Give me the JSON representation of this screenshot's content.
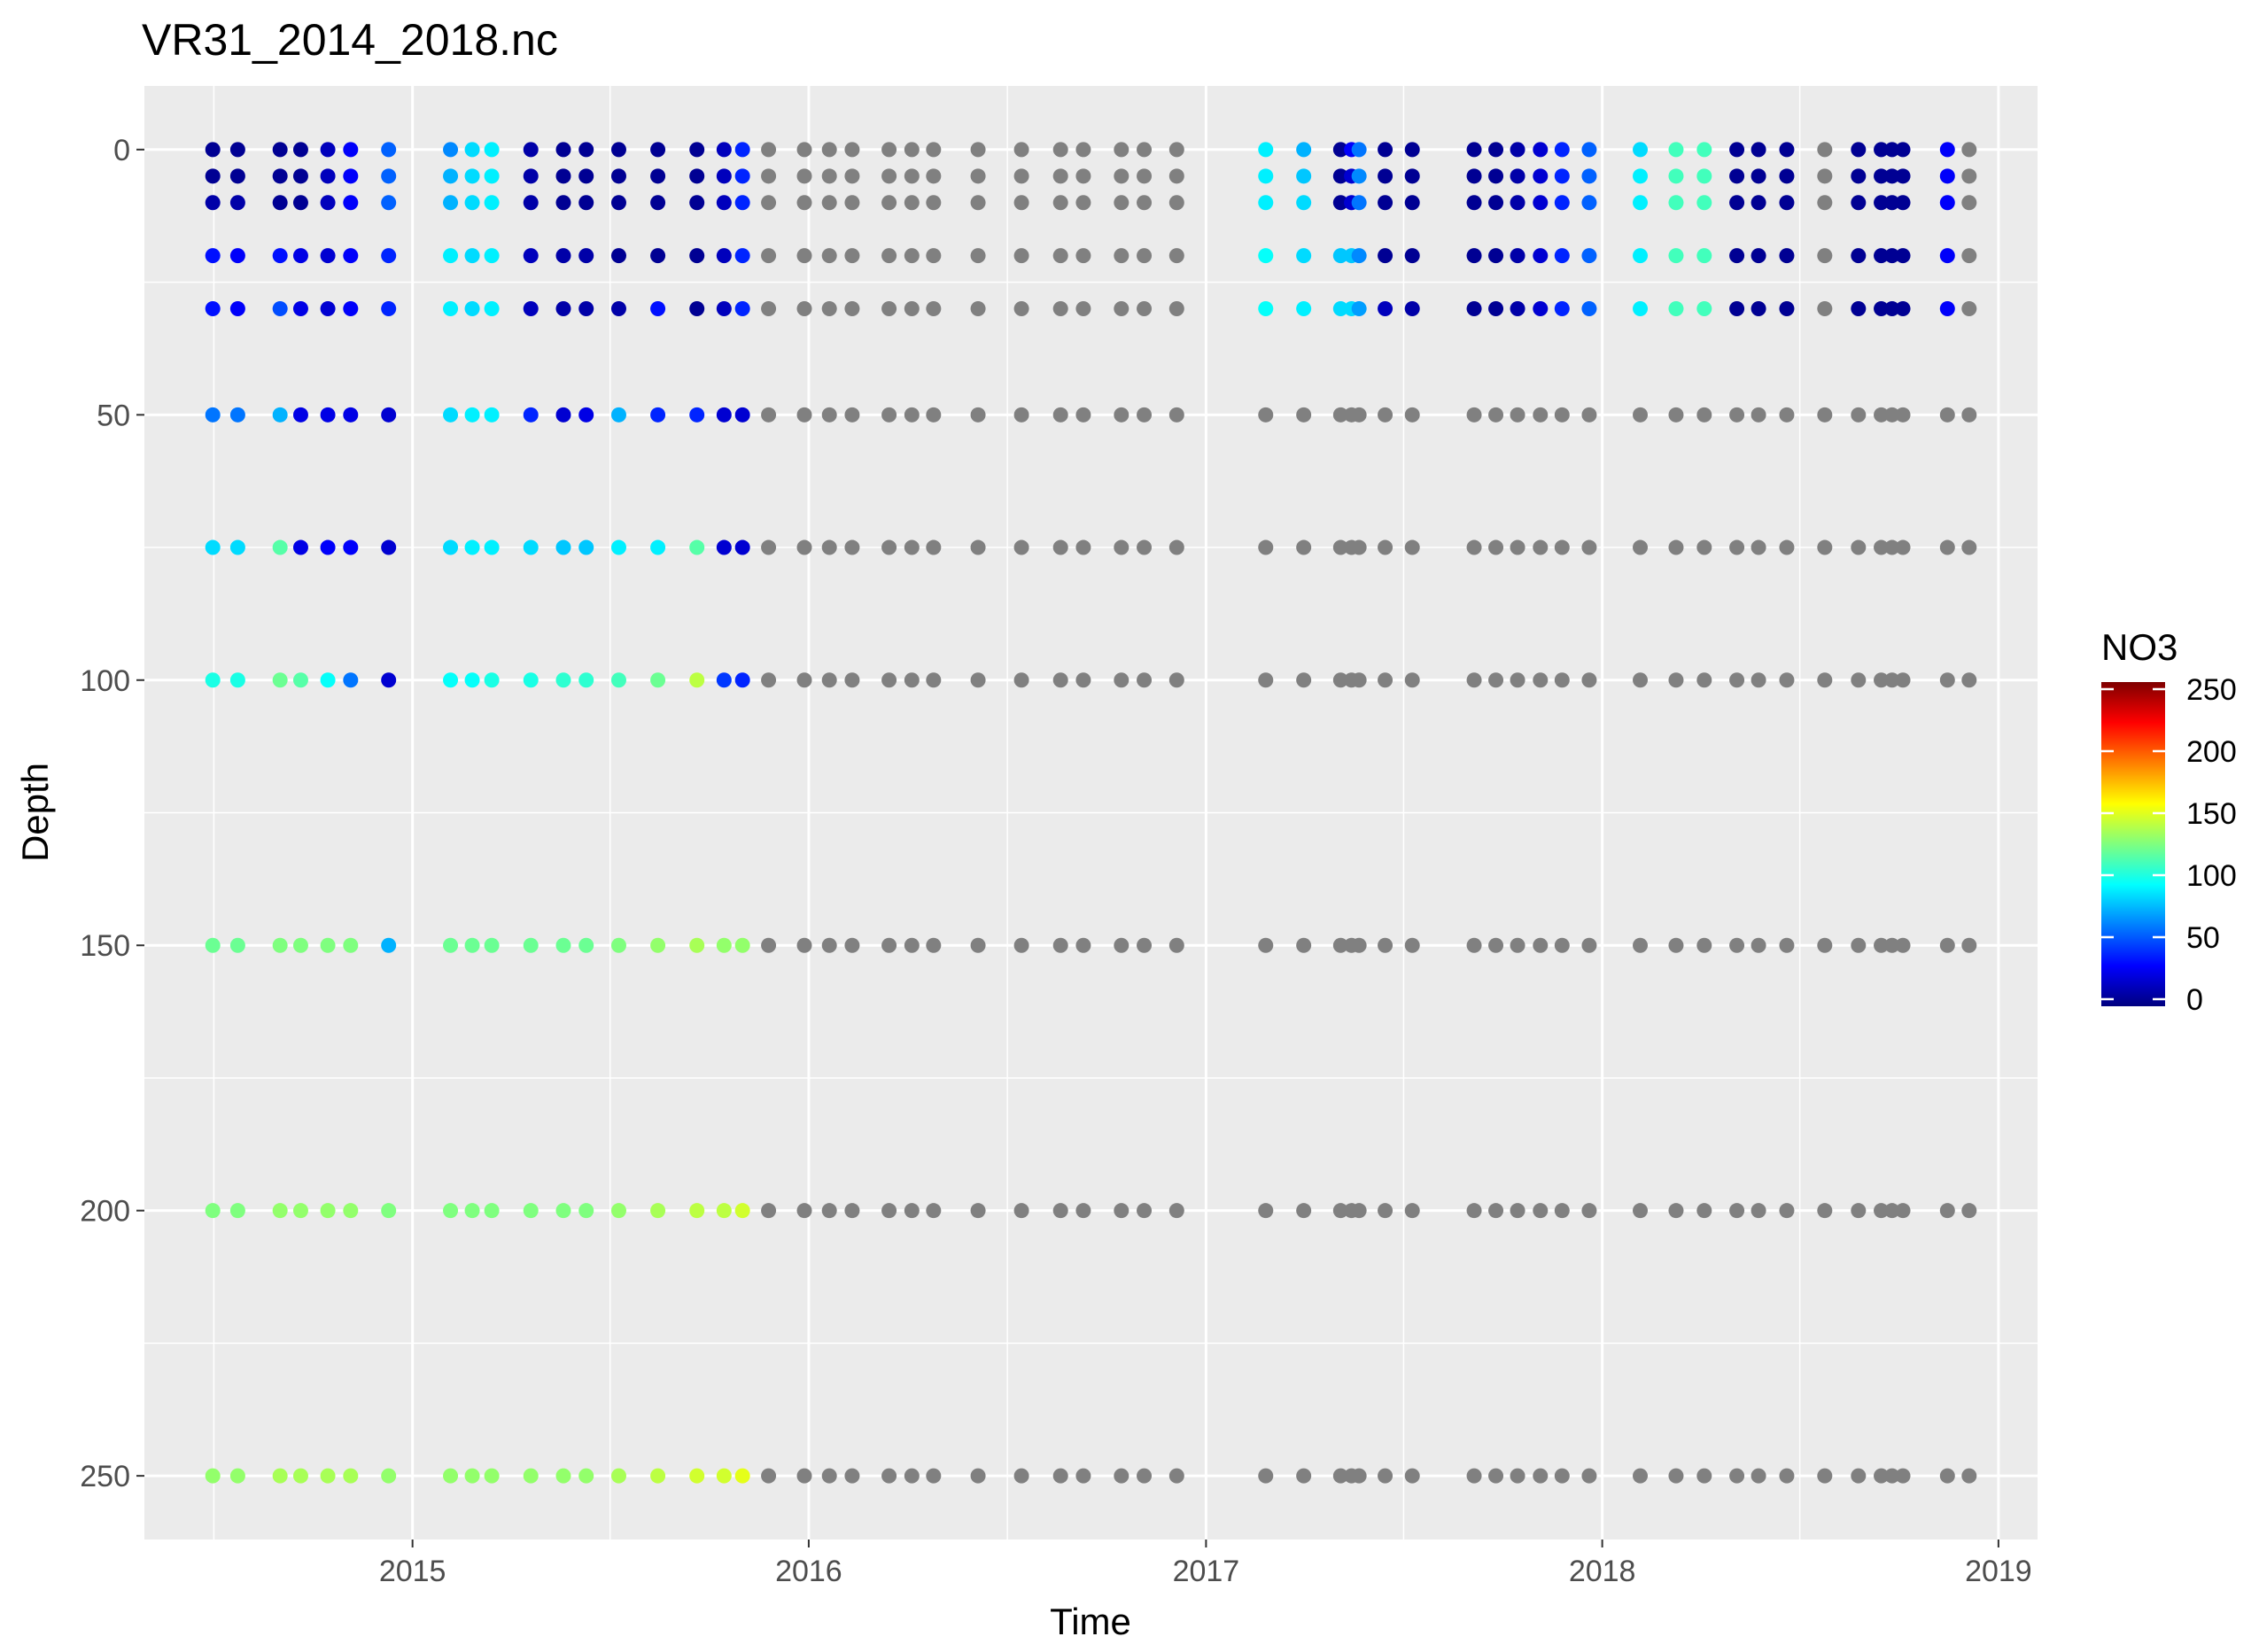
{
  "chart_data": {
    "type": "scatter",
    "title": "VR31_2014_2018.nc",
    "xlabel": "Time",
    "ylabel": "Depth",
    "x_type": "date",
    "xlim": [
      "2014-04-29",
      "2019-02-06"
    ],
    "ylim": [
      262,
      -12
    ],
    "y_reversed": true,
    "x_ticks": [
      "2015",
      "2016",
      "2017",
      "2018",
      "2019"
    ],
    "y_ticks": [
      "0",
      "50",
      "100",
      "150",
      "200",
      "250"
    ],
    "grid": true,
    "na_color": "#808080",
    "colorbar": {
      "title": "NO3",
      "min": 0,
      "max": 250,
      "ticks": [
        "0",
        "50",
        "100",
        "150",
        "200",
        "250"
      ],
      "colors": [
        "#00007F",
        "#0000FF",
        "#007FFF",
        "#00FFFF",
        "#7FFF7F",
        "#FFFF00",
        "#FF7F00",
        "#FF0000",
        "#7F0000"
      ]
    },
    "depths": [
      0,
      5,
      10,
      20,
      30,
      50,
      75,
      100,
      150,
      200,
      250
    ],
    "legend_position": "right",
    "series": [
      {
        "x": "2014-07-01",
        "values": [
          5,
          5,
          10,
          35,
          35,
          60,
          85,
          100,
          120,
          125,
          130
        ]
      },
      {
        "x": "2014-07-24",
        "values": [
          5,
          5,
          10,
          30,
          30,
          60,
          85,
          100,
          120,
          125,
          130
        ]
      },
      {
        "x": "2014-09-01",
        "values": [
          5,
          5,
          5,
          35,
          50,
          75,
          115,
          120,
          125,
          130,
          135
        ]
      },
      {
        "x": "2014-09-20",
        "values": [
          5,
          5,
          5,
          25,
          25,
          25,
          25,
          115,
          125,
          130,
          135
        ]
      },
      {
        "x": "2014-10-15",
        "values": [
          15,
          15,
          15,
          20,
          20,
          25,
          30,
          95,
          125,
          130,
          135
        ]
      },
      {
        "x": "2014-11-05",
        "values": [
          30,
          30,
          30,
          30,
          30,
          25,
          30,
          60,
          125,
          130,
          135
        ]
      },
      {
        "x": "2014-12-10",
        "values": [
          55,
          55,
          55,
          40,
          40,
          20,
          20,
          20,
          75,
          125,
          130
        ]
      },
      {
        "x": "2015-02-05",
        "values": [
          65,
          75,
          75,
          90,
          90,
          85,
          85,
          95,
          120,
          125,
          130
        ]
      },
      {
        "x": "2015-02-25",
        "values": [
          85,
          85,
          85,
          85,
          85,
          90,
          90,
          95,
          120,
          125,
          130
        ]
      },
      {
        "x": "2015-03-15",
        "values": [
          90,
          90,
          90,
          90,
          90,
          90,
          90,
          100,
          120,
          125,
          130
        ]
      },
      {
        "x": "2015-04-20",
        "values": [
          10,
          10,
          10,
          15,
          15,
          40,
          85,
          100,
          120,
          125,
          130
        ]
      },
      {
        "x": "2015-05-20",
        "values": [
          5,
          5,
          5,
          10,
          10,
          20,
          80,
          105,
          120,
          125,
          130
        ]
      },
      {
        "x": "2015-06-10",
        "values": [
          5,
          5,
          5,
          10,
          10,
          25,
          80,
          105,
          120,
          125,
          130
        ]
      },
      {
        "x": "2015-07-10",
        "values": [
          5,
          5,
          5,
          5,
          10,
          75,
          90,
          110,
          125,
          130,
          135
        ]
      },
      {
        "x": "2015-08-15",
        "values": [
          5,
          5,
          5,
          5,
          35,
          40,
          90,
          120,
          130,
          135,
          140
        ]
      },
      {
        "x": "2015-09-20",
        "values": [
          5,
          5,
          5,
          5,
          5,
          40,
          115,
          140,
          135,
          140,
          145
        ]
      },
      {
        "x": "2015-10-15",
        "values": [
          15,
          15,
          15,
          15,
          15,
          20,
          20,
          45,
          130,
          140,
          145
        ]
      },
      {
        "x": "2015-11-01",
        "values": [
          40,
          40,
          40,
          40,
          40,
          20,
          20,
          40,
          130,
          145,
          150
        ]
      },
      {
        "x": "2015-11-25",
        "values": [
          null,
          null,
          null,
          null,
          null,
          null,
          null,
          null,
          null,
          null,
          null
        ]
      },
      {
        "x": "2015-12-28",
        "values": [
          null,
          null,
          null,
          null,
          null,
          null,
          null,
          null,
          null,
          null,
          null
        ]
      },
      {
        "x": "2016-01-20",
        "values": [
          null,
          null,
          null,
          null,
          null,
          null,
          null,
          null,
          null,
          null,
          null
        ]
      },
      {
        "x": "2016-02-10",
        "values": [
          null,
          null,
          null,
          null,
          null,
          null,
          null,
          null,
          null,
          null,
          null
        ]
      },
      {
        "x": "2016-03-15",
        "values": [
          null,
          null,
          null,
          null,
          null,
          null,
          null,
          null,
          null,
          null,
          null
        ]
      },
      {
        "x": "2016-04-05",
        "values": [
          null,
          null,
          null,
          null,
          null,
          null,
          null,
          null,
          null,
          null,
          null
        ]
      },
      {
        "x": "2016-04-25",
        "values": [
          null,
          null,
          null,
          null,
          null,
          null,
          null,
          null,
          null,
          null,
          null
        ]
      },
      {
        "x": "2016-06-05",
        "values": [
          null,
          null,
          null,
          null,
          null,
          null,
          null,
          null,
          null,
          null,
          null
        ]
      },
      {
        "x": "2016-07-15",
        "values": [
          null,
          null,
          null,
          null,
          null,
          null,
          null,
          null,
          null,
          null,
          null
        ]
      },
      {
        "x": "2016-08-20",
        "values": [
          null,
          null,
          null,
          null,
          null,
          null,
          null,
          null,
          null,
          null,
          null
        ]
      },
      {
        "x": "2016-09-10",
        "values": [
          null,
          null,
          null,
          null,
          null,
          null,
          null,
          null,
          null,
          null,
          null
        ]
      },
      {
        "x": "2016-10-15",
        "values": [
          null,
          null,
          null,
          null,
          null,
          null,
          null,
          null,
          null,
          null,
          null
        ]
      },
      {
        "x": "2016-11-05",
        "values": [
          null,
          null,
          null,
          null,
          null,
          null,
          null,
          null,
          null,
          null,
          null
        ]
      },
      {
        "x": "2016-12-05",
        "values": [
          null,
          null,
          null,
          null,
          null,
          null,
          null,
          null,
          null,
          null,
          null
        ]
      },
      {
        "x": "2017-02-25",
        "values": [
          90,
          90,
          90,
          95,
          95,
          null,
          null,
          null,
          null,
          null,
          null
        ]
      },
      {
        "x": "2017-04-01",
        "values": [
          75,
          80,
          85,
          85,
          90,
          null,
          null,
          null,
          null,
          null,
          null
        ]
      },
      {
        "x": "2017-05-05",
        "values": [
          5,
          5,
          5,
          80,
          85,
          null,
          null,
          null,
          null,
          null,
          null
        ]
      },
      {
        "x": "2017-05-15",
        "values": [
          30,
          20,
          20,
          80,
          85,
          null,
          null,
          null,
          null,
          null,
          null
        ]
      },
      {
        "x": "2017-05-22",
        "values": [
          60,
          65,
          60,
          65,
          70,
          null,
          null,
          null,
          null,
          null,
          null
        ]
      },
      {
        "x": "2017-06-15",
        "values": [
          5,
          5,
          5,
          5,
          15,
          null,
          null,
          null,
          null,
          null,
          null
        ]
      },
      {
        "x": "2017-07-10",
        "values": [
          5,
          5,
          5,
          5,
          10,
          null,
          null,
          null,
          null,
          null,
          null
        ]
      },
      {
        "x": "2017-09-05",
        "values": [
          5,
          5,
          5,
          5,
          5,
          null,
          null,
          null,
          null,
          null,
          null
        ]
      },
      {
        "x": "2017-09-25",
        "values": [
          5,
          5,
          5,
          5,
          5,
          null,
          null,
          null,
          null,
          null,
          null
        ]
      },
      {
        "x": "2017-10-15",
        "values": [
          10,
          10,
          10,
          10,
          10,
          null,
          null,
          null,
          null,
          null,
          null
        ]
      },
      {
        "x": "2017-11-05",
        "values": [
          20,
          20,
          20,
          20,
          20,
          null,
          null,
          null,
          null,
          null,
          null
        ]
      },
      {
        "x": "2017-11-25",
        "values": [
          40,
          40,
          40,
          40,
          40,
          null,
          null,
          null,
          null,
          null,
          null
        ]
      },
      {
        "x": "2017-12-20",
        "values": [
          55,
          55,
          55,
          55,
          55,
          null,
          null,
          null,
          null,
          null,
          null
        ]
      },
      {
        "x": "2018-02-05",
        "values": [
          85,
          90,
          90,
          90,
          90,
          null,
          null,
          null,
          null,
          null,
          null
        ]
      },
      {
        "x": "2018-03-10",
        "values": [
          110,
          110,
          110,
          110,
          110,
          null,
          null,
          null,
          null,
          null,
          null
        ]
      },
      {
        "x": "2018-04-05",
        "values": [
          110,
          110,
          110,
          110,
          110,
          null,
          null,
          null,
          null,
          null,
          null
        ]
      },
      {
        "x": "2018-05-05",
        "values": [
          5,
          5,
          5,
          5,
          5,
          null,
          null,
          null,
          null,
          null,
          null
        ]
      },
      {
        "x": "2018-05-25",
        "values": [
          5,
          5,
          5,
          5,
          5,
          null,
          null,
          null,
          null,
          null,
          null
        ]
      },
      {
        "x": "2018-06-20",
        "values": [
          5,
          5,
          5,
          5,
          5,
          null,
          null,
          null,
          null,
          null,
          null
        ]
      },
      {
        "x": "2018-07-25",
        "values": [
          null,
          null,
          null,
          null,
          null,
          null,
          null,
          null,
          null,
          null,
          null
        ]
      },
      {
        "x": "2018-08-25",
        "values": [
          5,
          5,
          5,
          5,
          5,
          null,
          null,
          null,
          null,
          null,
          null
        ]
      },
      {
        "x": "2018-09-15",
        "values": [
          5,
          5,
          5,
          5,
          5,
          null,
          null,
          null,
          null,
          null,
          null
        ]
      },
      {
        "x": "2018-09-25",
        "values": [
          5,
          5,
          5,
          5,
          5,
          null,
          null,
          null,
          null,
          null,
          null
        ]
      },
      {
        "x": "2018-10-05",
        "values": [
          5,
          5,
          5,
          5,
          5,
          null,
          null,
          null,
          null,
          null,
          null
        ]
      },
      {
        "x": "2018-11-15",
        "values": [
          30,
          30,
          30,
          30,
          30,
          null,
          null,
          null,
          null,
          null,
          null
        ]
      },
      {
        "x": "2018-12-05",
        "values": [
          null,
          null,
          null,
          null,
          null,
          null,
          null,
          null,
          null,
          null,
          null
        ]
      }
    ]
  }
}
